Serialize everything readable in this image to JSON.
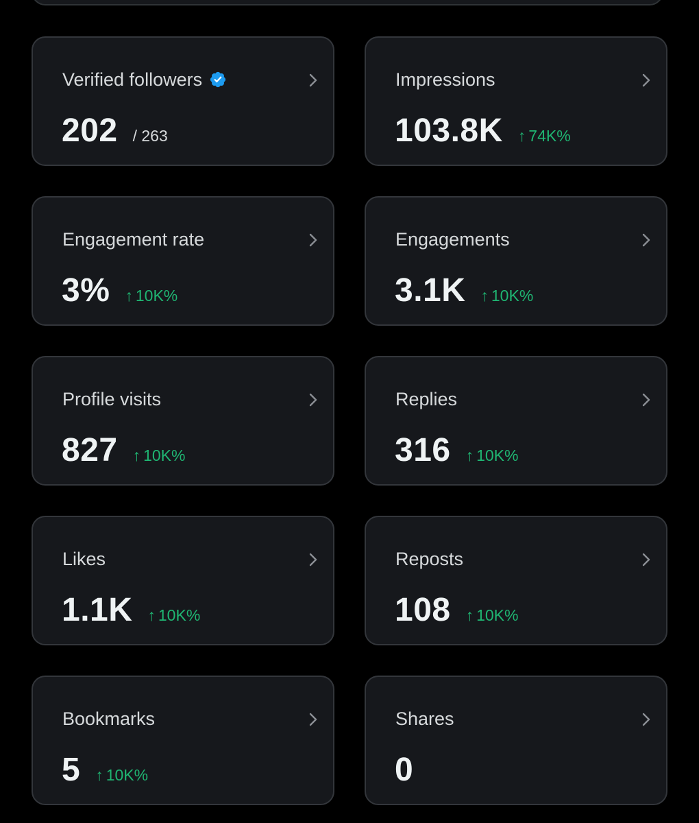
{
  "cards": [
    {
      "label": "Verified followers",
      "value": "202",
      "subvalue": "/ 263",
      "delta": "",
      "verified_badge": true
    },
    {
      "label": "Impressions",
      "value": "103.8K",
      "subvalue": "",
      "delta": "74K%"
    },
    {
      "label": "Engagement rate",
      "value": "3%",
      "subvalue": "",
      "delta": "10K%"
    },
    {
      "label": "Engagements",
      "value": "3.1K",
      "subvalue": "",
      "delta": "10K%"
    },
    {
      "label": "Profile visits",
      "value": "827",
      "subvalue": "",
      "delta": "10K%"
    },
    {
      "label": "Replies",
      "value": "316",
      "subvalue": "",
      "delta": "10K%"
    },
    {
      "label": "Likes",
      "value": "1.1K",
      "subvalue": "",
      "delta": "10K%"
    },
    {
      "label": "Reposts",
      "value": "108",
      "subvalue": "",
      "delta": "10K%"
    },
    {
      "label": "Bookmarks",
      "value": "5",
      "subvalue": "",
      "delta": "10K%"
    },
    {
      "label": "Shares",
      "value": "0",
      "subvalue": "",
      "delta": ""
    }
  ],
  "delta_arrow": "↑",
  "icons": {
    "verified": "verified-badge-icon",
    "chevron": "chevron-right-icon"
  },
  "colors": {
    "background": "#000000",
    "card_background": "#16181c",
    "card_border": "#33363b",
    "positive_delta": "#1fb572",
    "verified_blue": "#1d9bf0"
  }
}
